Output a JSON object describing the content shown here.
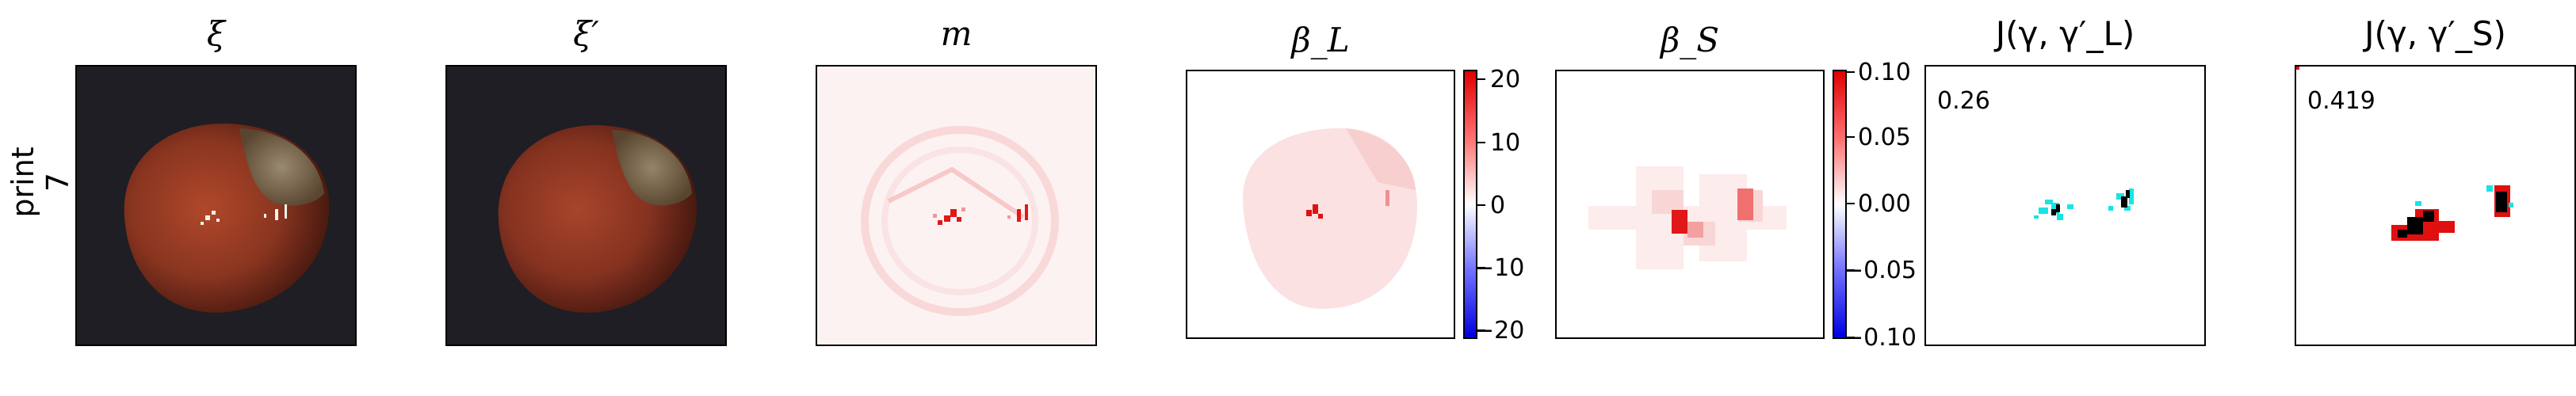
{
  "row_label": {
    "line1": "print",
    "line2": "7"
  },
  "panels": [
    {
      "title": "ξ"
    },
    {
      "title": "ξ′"
    },
    {
      "title": "m"
    },
    {
      "title": "β_L"
    },
    {
      "title": "β_S"
    },
    {
      "title": "J(γ, γ′_L)"
    },
    {
      "title": "J(γ, γ′_S)"
    }
  ],
  "colorbar_L": {
    "ticks": [
      "20",
      "10",
      "0",
      "−10",
      "−20"
    ]
  },
  "colorbar_S": {
    "ticks": [
      "0.10",
      "0.05",
      "0.00",
      "−0.05",
      "−0.10"
    ]
  },
  "scores": {
    "L": "0.26",
    "S": "0.419"
  },
  "colors": {
    "background_dark": "#1c1c22",
    "hazelnut": "#8a3520",
    "anomaly_red": "#e01010",
    "cyan": "#19e3e3",
    "colormap": "bwr"
  }
}
